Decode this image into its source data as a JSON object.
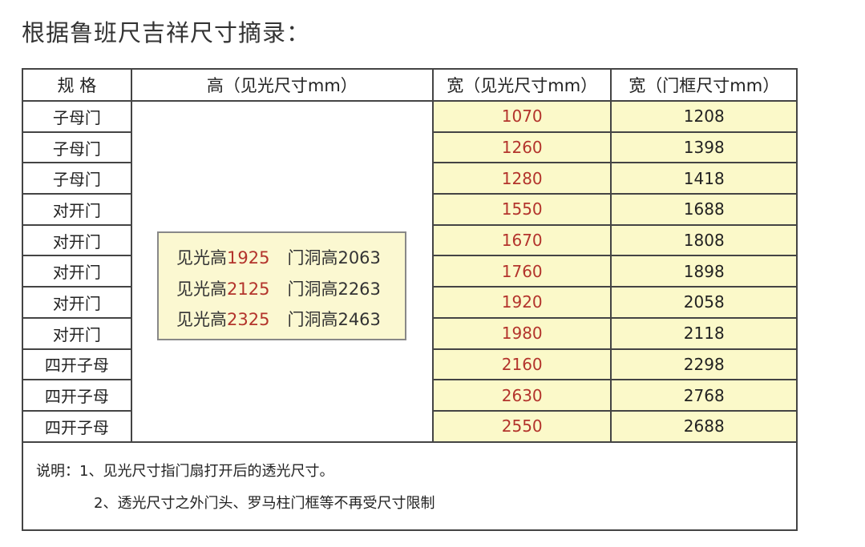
{
  "title": "根据鲁班尺吉祥尺寸摘录：",
  "table": {
    "headers": [
      "规 格",
      "高（见光尺寸mm）",
      "宽（见光尺寸mm）",
      "宽（门框尺寸mm）"
    ],
    "rows": [
      {
        "type": "子母门",
        "clear_width": "1070",
        "frame_width": "1208"
      },
      {
        "type": "子母门",
        "clear_width": "1260",
        "frame_width": "1398"
      },
      {
        "type": "子母门",
        "clear_width": "1280",
        "frame_width": "1418"
      },
      {
        "type": "对开门",
        "clear_width": "1550",
        "frame_width": "1688"
      },
      {
        "type": "对开门",
        "clear_width": "1670",
        "frame_width": "1808"
      },
      {
        "type": "对开门",
        "clear_width": "1760",
        "frame_width": "1898"
      },
      {
        "type": "对开门",
        "clear_width": "1920",
        "frame_width": "2058"
      },
      {
        "type": "对开门",
        "clear_width": "1980",
        "frame_width": "2118"
      },
      {
        "type": "四开子母",
        "clear_width": "2160",
        "frame_width": "2298"
      },
      {
        "type": "四开子母",
        "clear_width": "2630",
        "frame_width": "2768"
      },
      {
        "type": "四开子母",
        "clear_width": "2550",
        "frame_width": "2688"
      }
    ],
    "heights": [
      {
        "clear_label": "见光高",
        "clear": "1925",
        "opening_label": "门洞高",
        "opening": "2063"
      },
      {
        "clear_label": "见光高",
        "clear": "2125",
        "opening_label": "门洞高",
        "opening": "2263"
      },
      {
        "clear_label": "见光高",
        "clear": "2325",
        "opening_label": "门洞高",
        "opening": "2463"
      }
    ]
  },
  "notes": [
    "说明：1、见光尺寸指门扇打开后的透光尺寸。",
    "2、透光尺寸之外门头、罗马柱门框等不再受尺寸限制"
  ],
  "colors": {
    "highlight_bg": "#fbf9c9",
    "red_number": "#b3342c"
  }
}
